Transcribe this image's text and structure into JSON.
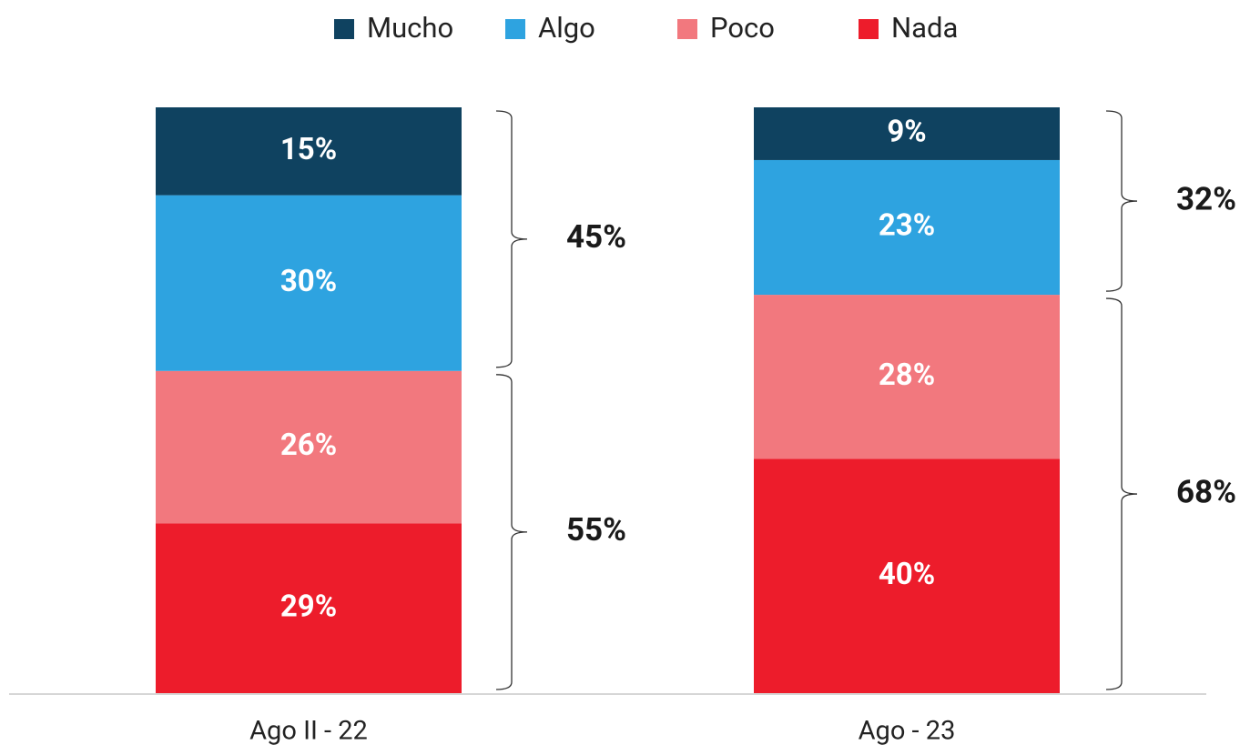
{
  "chart_data": {
    "type": "stacked_bar",
    "categories": [
      "Ago II - 22",
      "Ago - 23"
    ],
    "series": [
      {
        "name": "Mucho",
        "color": "#0f4260",
        "values": [
          15,
          9
        ],
        "value_labels": [
          "15%",
          "9%"
        ]
      },
      {
        "name": "Algo",
        "color": "#2ea3e0",
        "values": [
          30,
          23
        ],
        "value_labels": [
          "30%",
          "23%"
        ]
      },
      {
        "name": "Poco",
        "color": "#f2787e",
        "values": [
          26,
          28
        ],
        "value_labels": [
          "26%",
          "28%"
        ]
      },
      {
        "name": "Nada",
        "color": "#ed1c2b",
        "values": [
          29,
          40
        ],
        "value_labels": [
          "29%",
          "40%"
        ]
      }
    ],
    "group_totals": [
      {
        "values": [
          45,
          32
        ],
        "value_labels": [
          "45%",
          "32%"
        ]
      },
      {
        "values": [
          55,
          68
        ],
        "value_labels": [
          "55%",
          "68%"
        ]
      }
    ],
    "ylim": [
      0,
      100
    ],
    "legend": "top"
  }
}
